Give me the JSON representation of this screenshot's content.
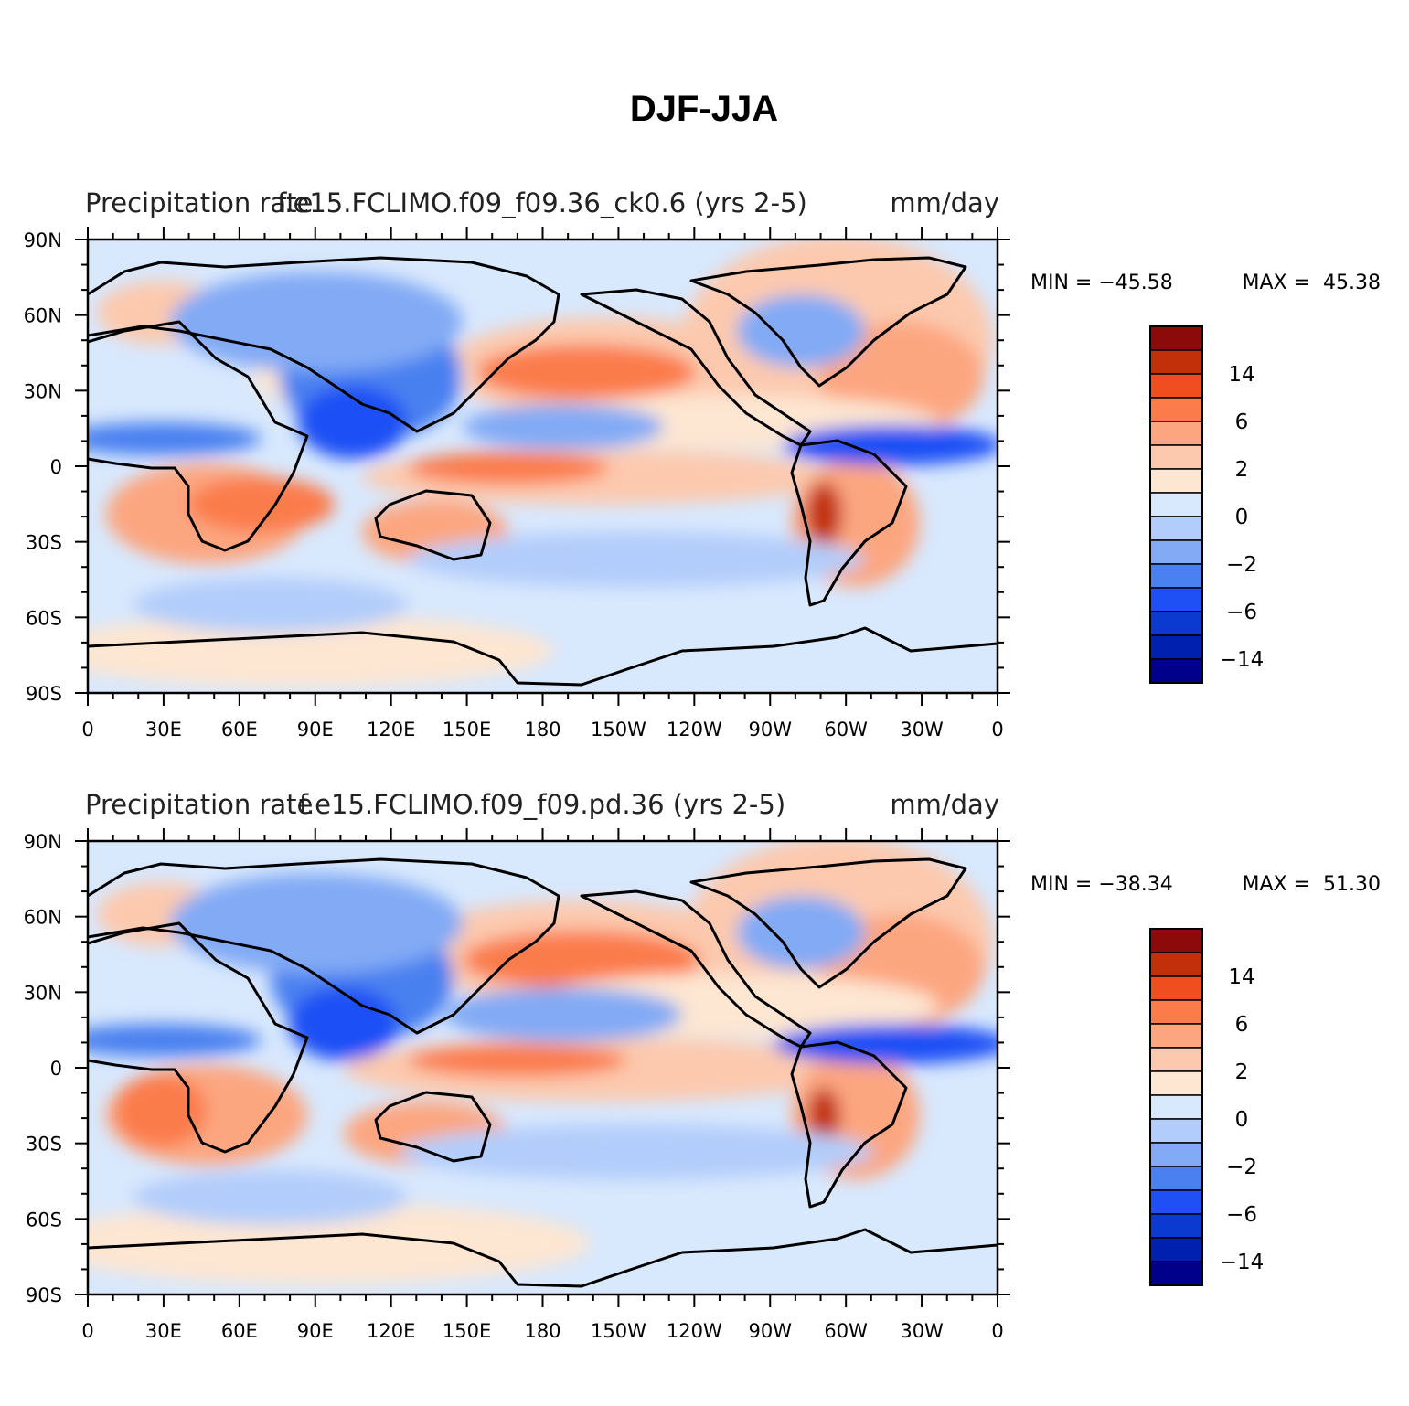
{
  "figure_title": "DJF-JJA",
  "colors": {
    "levels": [
      "#00008b",
      "#0020b0",
      "#0a3ad0",
      "#1e50f5",
      "#4a80f0",
      "#82aaf5",
      "#b2cdfb",
      "#d8e8fd",
      "#fde6d2",
      "#fcc9ae",
      "#fca680",
      "#fb7b4b",
      "#f04e1e",
      "#c2300a",
      "#8c0a0a"
    ],
    "coastline": "#000000"
  },
  "panels": [
    {
      "left_title": "Precipitation rate",
      "center_title": "f.e15.FCLIMO.f09_f09.36_ck0.6 (yrs 2-5)",
      "right_title": "mm/day",
      "min_label": "MIN = −45.58",
      "max_label": "MAX =  45.38",
      "colorbar_labels": [
        "14",
        "6",
        "2",
        "0",
        "−2",
        "−6",
        "−14"
      ]
    },
    {
      "left_title": "Precipitation rate",
      "center_title": "f.e15.FCLIMO.f09_f09.pd.36 (yrs 2-5)",
      "right_title": "mm/day",
      "min_label": "MIN = −38.34",
      "max_label": "MAX =  51.30",
      "colorbar_labels": [
        "14",
        "6",
        "2",
        "0",
        "−2",
        "−6",
        "−14"
      ]
    }
  ],
  "axes": {
    "lon_labels": [
      "0",
      "30E",
      "60E",
      "90E",
      "120E",
      "150E",
      "180",
      "150W",
      "120W",
      "90W",
      "60W",
      "30W",
      "0"
    ],
    "lat_labels": [
      "90N",
      "60N",
      "30N",
      "0",
      "30S",
      "60S",
      "90S"
    ]
  }
}
